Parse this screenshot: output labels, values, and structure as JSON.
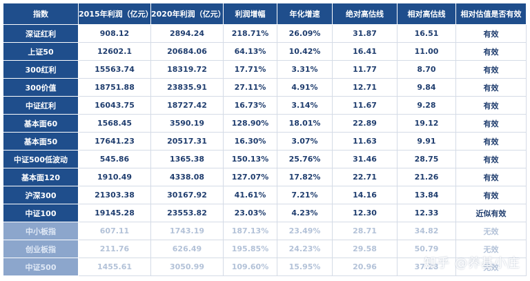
{
  "table": {
    "headers": [
      "指数",
      "2015年利润（亿元）",
      "2020年利润（亿元）",
      "利润增幅",
      "年化增速",
      "绝对高估线",
      "相对高估线",
      "相对估值是否有效"
    ],
    "rows": [
      {
        "cells": [
          "深证红利",
          "908.12",
          "2894.24",
          "218.71%",
          "26.09%",
          "31.87",
          "16.51",
          "有效"
        ],
        "faded": false
      },
      {
        "cells": [
          "上证50",
          "12602.1",
          "20684.06",
          "64.13%",
          "10.42%",
          "16.41",
          "11.00",
          "有效"
        ],
        "faded": false
      },
      {
        "cells": [
          "300红利",
          "15563.74",
          "18319.72",
          "17.71%",
          "3.31%",
          "11.77",
          "8.70",
          "有效"
        ],
        "faded": false
      },
      {
        "cells": [
          "300价值",
          "18751.88",
          "23835.91",
          "27.11%",
          "4.91%",
          "12.71",
          "9.84",
          "有效"
        ],
        "faded": false
      },
      {
        "cells": [
          "中证红利",
          "16043.75",
          "18727.42",
          "16.73%",
          "3.14%",
          "11.67",
          "9.28",
          "有效"
        ],
        "faded": false
      },
      {
        "cells": [
          "基本面60",
          "1568.45",
          "3590.19",
          "128.90%",
          "18.01%",
          "22.89",
          "19.12",
          "有效"
        ],
        "faded": false
      },
      {
        "cells": [
          "基本面50",
          "17641.23",
          "20517.31",
          "16.30%",
          "3.07%",
          "11.63",
          "9.91",
          "有效"
        ],
        "faded": false
      },
      {
        "cells": [
          "中证500低波动",
          "545.86",
          "1365.38",
          "150.13%",
          "25.76%",
          "31.46",
          "28.75",
          "有效"
        ],
        "faded": false
      },
      {
        "cells": [
          "基本面120",
          "1910.49",
          "4338.08",
          "127.07%",
          "17.82%",
          "22.71",
          "21.26",
          "有效"
        ],
        "faded": false
      },
      {
        "cells": [
          "沪深300",
          "21303.38",
          "30167.92",
          "41.61%",
          "7.21%",
          "14.16",
          "13.84",
          "有效"
        ],
        "faded": false
      },
      {
        "cells": [
          "中证100",
          "19145.28",
          "23553.82",
          "23.03%",
          "4.23%",
          "12.30",
          "12.33",
          "近似有效"
        ],
        "faded": false
      },
      {
        "cells": [
          "中小板指",
          "607.11",
          "1743.19",
          "187.13%",
          "23.49%",
          "28.71",
          "34.82",
          "无效"
        ],
        "faded": true
      },
      {
        "cells": [
          "创业板指",
          "211.76",
          "626.49",
          "195.85%",
          "24.23%",
          "29.58",
          "50.79",
          "无效"
        ],
        "faded": true
      },
      {
        "cells": [
          "中证500",
          "1455.61",
          "3050.99",
          "109.60%",
          "15.95%",
          "20.96",
          "37.28",
          "无效"
        ],
        "faded": true
      }
    ]
  },
  "watermark": "知乎 @养基小庄",
  "colors": {
    "header_bg": "#1f4e8c",
    "text_primary": "#1f3d6e",
    "faded_text": "#b3c2d8",
    "faded_name_bg": "#8ca6cc"
  }
}
